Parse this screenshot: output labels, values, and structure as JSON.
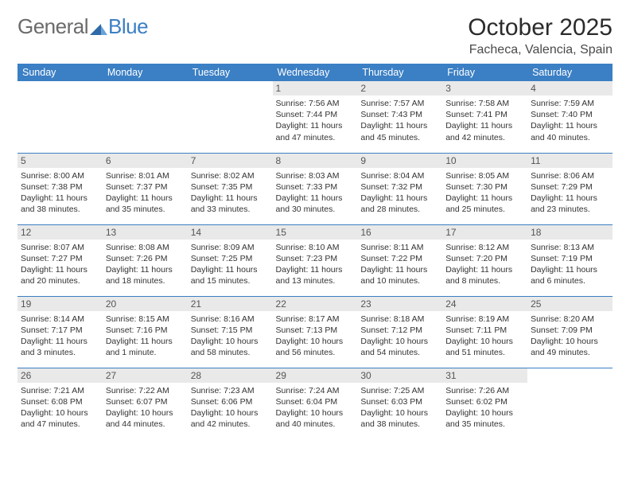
{
  "brand": {
    "part1": "General",
    "part2": "Blue"
  },
  "title": "October 2025",
  "location": "Facheca, Valencia, Spain",
  "colors": {
    "header_bg": "#3b7fc4",
    "header_text": "#ffffff",
    "daynum_bg": "#e9e9e9",
    "divider": "#3b7fc4",
    "body_text": "#333333",
    "brand_gray": "#6b6b6b",
    "brand_blue": "#3b7fc4"
  },
  "fonts": {
    "title_size_pt": 22,
    "location_size_pt": 12,
    "dayhead_size_pt": 10,
    "daynum_size_pt": 9,
    "daytext_size_pt": 8
  },
  "day_headers": [
    "Sunday",
    "Monday",
    "Tuesday",
    "Wednesday",
    "Thursday",
    "Friday",
    "Saturday"
  ],
  "weeks": [
    [
      {
        "n": "",
        "sr": "",
        "ss": "",
        "dl": ""
      },
      {
        "n": "",
        "sr": "",
        "ss": "",
        "dl": ""
      },
      {
        "n": "",
        "sr": "",
        "ss": "",
        "dl": ""
      },
      {
        "n": "1",
        "sr": "Sunrise: 7:56 AM",
        "ss": "Sunset: 7:44 PM",
        "dl": "Daylight: 11 hours and 47 minutes."
      },
      {
        "n": "2",
        "sr": "Sunrise: 7:57 AM",
        "ss": "Sunset: 7:43 PM",
        "dl": "Daylight: 11 hours and 45 minutes."
      },
      {
        "n": "3",
        "sr": "Sunrise: 7:58 AM",
        "ss": "Sunset: 7:41 PM",
        "dl": "Daylight: 11 hours and 42 minutes."
      },
      {
        "n": "4",
        "sr": "Sunrise: 7:59 AM",
        "ss": "Sunset: 7:40 PM",
        "dl": "Daylight: 11 hours and 40 minutes."
      }
    ],
    [
      {
        "n": "5",
        "sr": "Sunrise: 8:00 AM",
        "ss": "Sunset: 7:38 PM",
        "dl": "Daylight: 11 hours and 38 minutes."
      },
      {
        "n": "6",
        "sr": "Sunrise: 8:01 AM",
        "ss": "Sunset: 7:37 PM",
        "dl": "Daylight: 11 hours and 35 minutes."
      },
      {
        "n": "7",
        "sr": "Sunrise: 8:02 AM",
        "ss": "Sunset: 7:35 PM",
        "dl": "Daylight: 11 hours and 33 minutes."
      },
      {
        "n": "8",
        "sr": "Sunrise: 8:03 AM",
        "ss": "Sunset: 7:33 PM",
        "dl": "Daylight: 11 hours and 30 minutes."
      },
      {
        "n": "9",
        "sr": "Sunrise: 8:04 AM",
        "ss": "Sunset: 7:32 PM",
        "dl": "Daylight: 11 hours and 28 minutes."
      },
      {
        "n": "10",
        "sr": "Sunrise: 8:05 AM",
        "ss": "Sunset: 7:30 PM",
        "dl": "Daylight: 11 hours and 25 minutes."
      },
      {
        "n": "11",
        "sr": "Sunrise: 8:06 AM",
        "ss": "Sunset: 7:29 PM",
        "dl": "Daylight: 11 hours and 23 minutes."
      }
    ],
    [
      {
        "n": "12",
        "sr": "Sunrise: 8:07 AM",
        "ss": "Sunset: 7:27 PM",
        "dl": "Daylight: 11 hours and 20 minutes."
      },
      {
        "n": "13",
        "sr": "Sunrise: 8:08 AM",
        "ss": "Sunset: 7:26 PM",
        "dl": "Daylight: 11 hours and 18 minutes."
      },
      {
        "n": "14",
        "sr": "Sunrise: 8:09 AM",
        "ss": "Sunset: 7:25 PM",
        "dl": "Daylight: 11 hours and 15 minutes."
      },
      {
        "n": "15",
        "sr": "Sunrise: 8:10 AM",
        "ss": "Sunset: 7:23 PM",
        "dl": "Daylight: 11 hours and 13 minutes."
      },
      {
        "n": "16",
        "sr": "Sunrise: 8:11 AM",
        "ss": "Sunset: 7:22 PM",
        "dl": "Daylight: 11 hours and 10 minutes."
      },
      {
        "n": "17",
        "sr": "Sunrise: 8:12 AM",
        "ss": "Sunset: 7:20 PM",
        "dl": "Daylight: 11 hours and 8 minutes."
      },
      {
        "n": "18",
        "sr": "Sunrise: 8:13 AM",
        "ss": "Sunset: 7:19 PM",
        "dl": "Daylight: 11 hours and 6 minutes."
      }
    ],
    [
      {
        "n": "19",
        "sr": "Sunrise: 8:14 AM",
        "ss": "Sunset: 7:17 PM",
        "dl": "Daylight: 11 hours and 3 minutes."
      },
      {
        "n": "20",
        "sr": "Sunrise: 8:15 AM",
        "ss": "Sunset: 7:16 PM",
        "dl": "Daylight: 11 hours and 1 minute."
      },
      {
        "n": "21",
        "sr": "Sunrise: 8:16 AM",
        "ss": "Sunset: 7:15 PM",
        "dl": "Daylight: 10 hours and 58 minutes."
      },
      {
        "n": "22",
        "sr": "Sunrise: 8:17 AM",
        "ss": "Sunset: 7:13 PM",
        "dl": "Daylight: 10 hours and 56 minutes."
      },
      {
        "n": "23",
        "sr": "Sunrise: 8:18 AM",
        "ss": "Sunset: 7:12 PM",
        "dl": "Daylight: 10 hours and 54 minutes."
      },
      {
        "n": "24",
        "sr": "Sunrise: 8:19 AM",
        "ss": "Sunset: 7:11 PM",
        "dl": "Daylight: 10 hours and 51 minutes."
      },
      {
        "n": "25",
        "sr": "Sunrise: 8:20 AM",
        "ss": "Sunset: 7:09 PM",
        "dl": "Daylight: 10 hours and 49 minutes."
      }
    ],
    [
      {
        "n": "26",
        "sr": "Sunrise: 7:21 AM",
        "ss": "Sunset: 6:08 PM",
        "dl": "Daylight: 10 hours and 47 minutes."
      },
      {
        "n": "27",
        "sr": "Sunrise: 7:22 AM",
        "ss": "Sunset: 6:07 PM",
        "dl": "Daylight: 10 hours and 44 minutes."
      },
      {
        "n": "28",
        "sr": "Sunrise: 7:23 AM",
        "ss": "Sunset: 6:06 PM",
        "dl": "Daylight: 10 hours and 42 minutes."
      },
      {
        "n": "29",
        "sr": "Sunrise: 7:24 AM",
        "ss": "Sunset: 6:04 PM",
        "dl": "Daylight: 10 hours and 40 minutes."
      },
      {
        "n": "30",
        "sr": "Sunrise: 7:25 AM",
        "ss": "Sunset: 6:03 PM",
        "dl": "Daylight: 10 hours and 38 minutes."
      },
      {
        "n": "31",
        "sr": "Sunrise: 7:26 AM",
        "ss": "Sunset: 6:02 PM",
        "dl": "Daylight: 10 hours and 35 minutes."
      },
      {
        "n": "",
        "sr": "",
        "ss": "",
        "dl": ""
      }
    ]
  ]
}
